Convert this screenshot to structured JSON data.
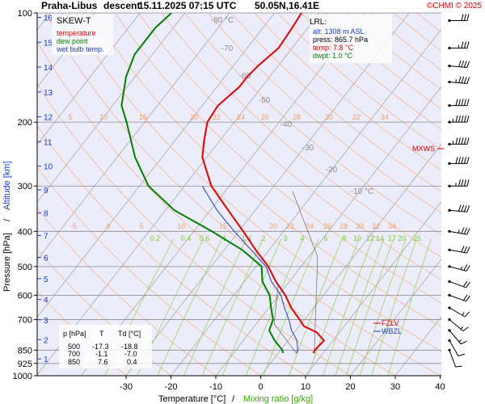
{
  "header": {
    "station": "Praha-Libus",
    "phase": "descent",
    "datetime": "15.11.2025 07:15 UTC",
    "position": "50.05N,16.41E",
    "copyright": "©CHMI © 2025"
  },
  "chart_data": {
    "type": "line",
    "title": "Praha-Libus descent 15.11.2025 07:15 UTC 50.05N,16.41E",
    "diagram": "SKEW-T",
    "xlabel": "Temperature [°C]",
    "xlabel_sep": "/",
    "xlabel2": "Mixing ratio [g/kg]",
    "ylabel": "Pressure [hPa]",
    "ylabel_sep": "/",
    "ylabel2": "Altitude [km]",
    "xlim": [
      -40,
      50
    ],
    "x_ticks": [
      -30,
      -20,
      -10,
      0,
      10,
      20,
      30,
      40
    ],
    "pressure_ticks": [
      100,
      200,
      300,
      400,
      500,
      600,
      700,
      850,
      925,
      1000
    ],
    "altitude_ticks_km": [
      16,
      15,
      14,
      13,
      12,
      11,
      10,
      9,
      8,
      7,
      6,
      5,
      4,
      3,
      2,
      1
    ],
    "isotherm_labels": [
      {
        "t": -80,
        "text": "-80 °C"
      },
      {
        "t": -70,
        "text": "-70"
      },
      {
        "t": -60,
        "text": "-60"
      },
      {
        "t": -50,
        "text": "-50"
      },
      {
        "t": -40,
        "text": "-40"
      },
      {
        "t": -30,
        "text": "-30"
      },
      {
        "t": -20,
        "text": "-20"
      },
      {
        "t": -10,
        "text": "-10 °C"
      }
    ],
    "theta_labels_upper": [
      "5",
      "10",
      "15",
      "20",
      "22",
      "24",
      "26",
      "28",
      "30",
      "32",
      "34"
    ],
    "theta_labels_lower": [
      "-5",
      "0",
      "5",
      "10",
      "15",
      "20",
      "22",
      "24",
      "26",
      "28",
      "30",
      "32",
      "34"
    ],
    "mixing_ratio_labels": [
      "0.2",
      "0.4",
      "0.6",
      "1",
      "1.4",
      "2",
      "3",
      "4",
      "6",
      "8",
      "10",
      "12",
      "14",
      "17",
      "20",
      "25"
    ],
    "legend": [
      {
        "name": "temperature",
        "color": "#e00000"
      },
      {
        "name": "dew point",
        "color": "#008000"
      },
      {
        "name": "wet bulb temp.",
        "color": "#1a3cc8"
      }
    ],
    "lrl": {
      "title": "LRL:",
      "alt": "alt: 1308 m ASL",
      "press": "press: 865.7 hPa",
      "temp": "temp: 7.8 °C",
      "dwpt": "dwpt: 1.0 °C"
    },
    "level_markers": [
      "MXWS",
      "FZLV",
      "WBZL"
    ],
    "table": {
      "headers": [
        "p [hPa]",
        "T",
        "Td [°C]"
      ],
      "rows": [
        [
          "500",
          "-17.3",
          "-18.8"
        ],
        [
          "700",
          "-1.1",
          "-7.0"
        ],
        [
          "850",
          "7.6",
          "0.4"
        ]
      ]
    },
    "series": [
      {
        "name": "temperature",
        "points": [
          [
            865.7,
            7.8
          ],
          [
            850,
            7.6
          ],
          [
            800,
            8.0
          ],
          [
            760,
            5.0
          ],
          [
            730,
            1.0
          ],
          [
            700,
            -1.1
          ],
          [
            650,
            -5.0
          ],
          [
            600,
            -8.5
          ],
          [
            550,
            -13.0
          ],
          [
            500,
            -17.3
          ],
          [
            450,
            -23.0
          ],
          [
            400,
            -29.0
          ],
          [
            350,
            -36.0
          ],
          [
            300,
            -44.0
          ],
          [
            250,
            -51.0
          ],
          [
            225,
            -53.5
          ],
          [
            200,
            -56.0
          ],
          [
            180,
            -56.5
          ],
          [
            160,
            -55.0
          ],
          [
            150,
            -55.0
          ],
          [
            140,
            -54.5
          ],
          [
            125,
            -53.0
          ],
          [
            110,
            -53.5
          ],
          [
            100,
            -54.0
          ]
        ]
      },
      {
        "name": "dew point",
        "points": [
          [
            865.7,
            1.0
          ],
          [
            850,
            0.4
          ],
          [
            800,
            -3.0
          ],
          [
            750,
            -6.0
          ],
          [
            700,
            -7.0
          ],
          [
            650,
            -9.5
          ],
          [
            600,
            -12.0
          ],
          [
            550,
            -16.0
          ],
          [
            500,
            -18.8
          ],
          [
            470,
            -23.0
          ],
          [
            450,
            -26.0
          ],
          [
            400,
            -36.0
          ],
          [
            350,
            -48.0
          ],
          [
            300,
            -58.0
          ],
          [
            250,
            -66.0
          ],
          [
            200,
            -74.0
          ],
          [
            180,
            -78.0
          ],
          [
            150,
            -82.0
          ],
          [
            130,
            -84.0
          ],
          [
            110,
            -84.0
          ],
          [
            100,
            -83.0
          ]
        ]
      },
      {
        "name": "wet bulb temp.",
        "points": [
          [
            865.7,
            4.0
          ],
          [
            850,
            3.8
          ],
          [
            800,
            2.0
          ],
          [
            750,
            -1.0
          ],
          [
            700,
            -3.5
          ],
          [
            650,
            -6.5
          ],
          [
            600,
            -9.5
          ],
          [
            550,
            -14.0
          ],
          [
            500,
            -17.8
          ],
          [
            450,
            -24.0
          ],
          [
            400,
            -31.0
          ],
          [
            350,
            -38.5
          ],
          [
            300,
            -46.0
          ]
        ]
      }
    ],
    "wind_barbs": [
      {
        "p": 105,
        "dir": 270,
        "kt": 30
      },
      {
        "p": 125,
        "dir": 270,
        "kt": 35
      },
      {
        "p": 140,
        "dir": 275,
        "kt": 40
      },
      {
        "p": 155,
        "dir": 275,
        "kt": 45
      },
      {
        "p": 180,
        "dir": 270,
        "kt": 50
      },
      {
        "p": 200,
        "dir": 270,
        "kt": 55
      },
      {
        "p": 230,
        "dir": 270,
        "kt": 55
      },
      {
        "p": 260,
        "dir": 270,
        "kt": 50
      },
      {
        "p": 300,
        "dir": 270,
        "kt": 45
      },
      {
        "p": 350,
        "dir": 275,
        "kt": 40
      },
      {
        "p": 400,
        "dir": 280,
        "kt": 35
      },
      {
        "p": 450,
        "dir": 280,
        "kt": 30
      },
      {
        "p": 500,
        "dir": 285,
        "kt": 25
      },
      {
        "p": 550,
        "dir": 290,
        "kt": 20
      },
      {
        "p": 600,
        "dir": 290,
        "kt": 20
      },
      {
        "p": 650,
        "dir": 300,
        "kt": 15
      },
      {
        "p": 700,
        "dir": 310,
        "kt": 15
      },
      {
        "p": 750,
        "dir": 320,
        "kt": 15
      },
      {
        "p": 800,
        "dir": 330,
        "kt": 10
      },
      {
        "p": 850,
        "dir": 340,
        "kt": 10
      }
    ]
  }
}
